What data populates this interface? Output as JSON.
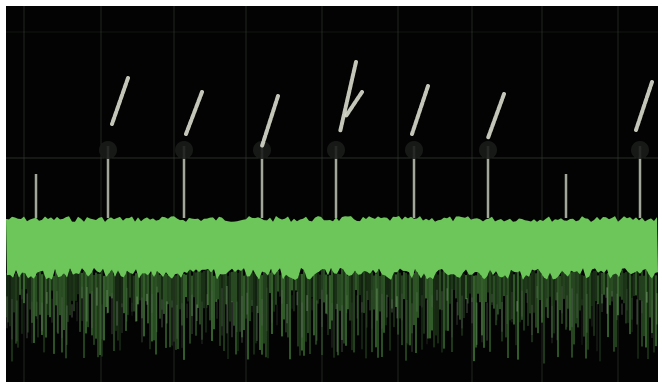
{
  "display": {
    "label": "",
    "background_color": "#020302",
    "trace_color": "#6cc65a",
    "marker_color": "#d8dccc",
    "grid_color": "#3a3f3a",
    "spike_count": 9,
    "marker_count": 8
  }
}
